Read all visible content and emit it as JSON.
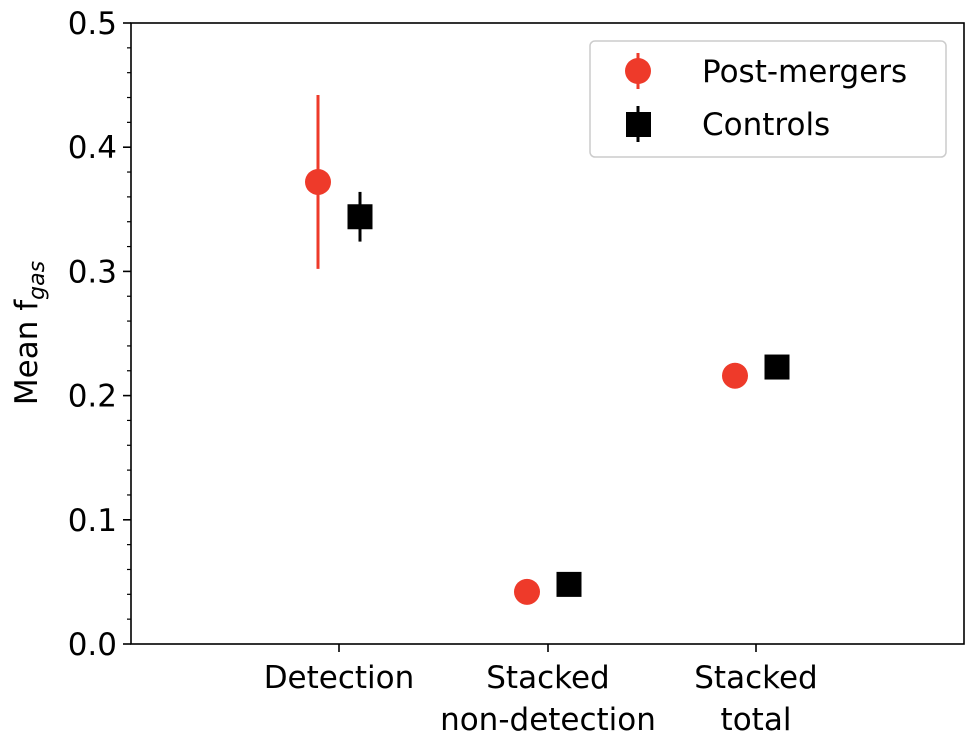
{
  "chart_data": {
    "type": "scatter",
    "title": "",
    "xlabel": "",
    "ylabel": "Mean f",
    "ylabel_subscript": "gas",
    "categories": [
      [
        "Detection"
      ],
      [
        "Stacked",
        "non-detection"
      ],
      [
        "Stacked",
        "total"
      ]
    ],
    "ylim": [
      0.0,
      0.5
    ],
    "yticks": [
      "0.0",
      "0.1",
      "0.2",
      "0.3",
      "0.4",
      "0.5"
    ],
    "grid": false,
    "legend_position": "top-right",
    "series": [
      {
        "name": "Post-mergers",
        "marker": "circle",
        "color": "#ee3a2a",
        "values": [
          0.372,
          0.042,
          0.216
        ],
        "err_low": [
          0.302,
          null,
          null
        ],
        "err_high": [
          0.442,
          null,
          null
        ]
      },
      {
        "name": "Controls",
        "marker": "square",
        "color": "#000000",
        "values": [
          0.344,
          0.048,
          0.223
        ],
        "err_low": [
          0.324,
          null,
          null
        ],
        "err_high": [
          0.364,
          null,
          null
        ]
      }
    ]
  }
}
